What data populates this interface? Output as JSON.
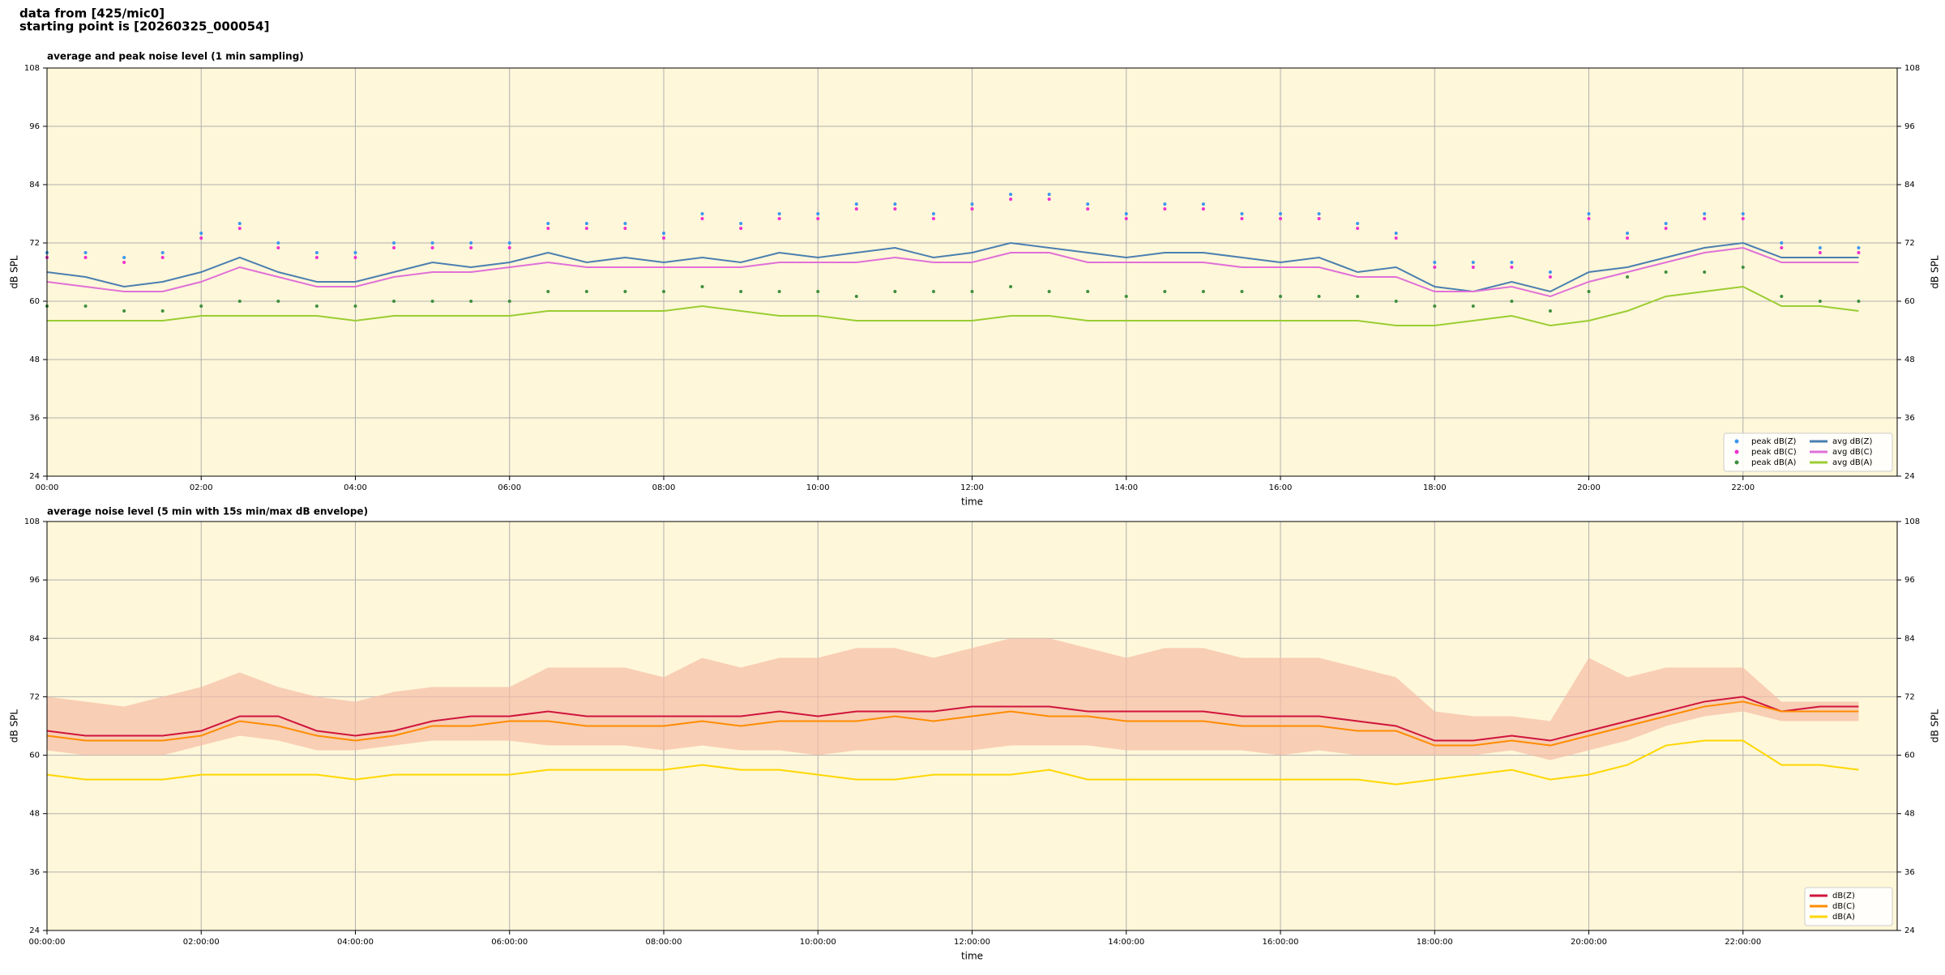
{
  "header": {
    "line1": "data from [425/mic0]",
    "line2": "starting point is [20260325_000054]"
  },
  "chart_data": [
    {
      "type": "line",
      "title": "average and peak noise level (1 min sampling)",
      "xlabel": "time",
      "ylabel": "dB SPL",
      "x": [
        "00:00",
        "00:30",
        "01:00",
        "01:30",
        "02:00",
        "02:30",
        "03:00",
        "03:30",
        "04:00",
        "04:30",
        "05:00",
        "05:30",
        "06:00",
        "06:30",
        "07:00",
        "07:30",
        "08:00",
        "08:30",
        "09:00",
        "09:30",
        "10:00",
        "10:30",
        "11:00",
        "11:30",
        "12:00",
        "12:30",
        "13:00",
        "13:30",
        "14:00",
        "14:30",
        "15:00",
        "15:30",
        "16:00",
        "16:30",
        "17:00",
        "17:30",
        "18:00",
        "18:30",
        "19:00",
        "19:30",
        "20:00",
        "20:30",
        "21:00",
        "21:30",
        "22:00",
        "22:30",
        "23:00",
        "23:30"
      ],
      "xlim": [
        "00:00",
        "24:00"
      ],
      "xticks": [
        "00:00",
        "02:00",
        "04:00",
        "06:00",
        "08:00",
        "10:00",
        "12:00",
        "14:00",
        "16:00",
        "18:00",
        "20:00",
        "22:00"
      ],
      "ylim": [
        24,
        108
      ],
      "yticks": [
        24,
        36,
        48,
        60,
        72,
        84,
        96,
        108
      ],
      "grid": true,
      "legend": "lower right",
      "legend_columns": 2,
      "background": "#fff7d9",
      "series": [
        {
          "name": "peak dB(Z)",
          "kind": "scatter",
          "color": "#3c96f0",
          "values": [
            70,
            70,
            69,
            70,
            74,
            76,
            72,
            70,
            70,
            72,
            72,
            72,
            72,
            76,
            76,
            76,
            74,
            78,
            76,
            78,
            78,
            80,
            80,
            78,
            80,
            82,
            82,
            80,
            78,
            80,
            80,
            78,
            78,
            78,
            76,
            74,
            68,
            68,
            68,
            66,
            78,
            74,
            76,
            78,
            78,
            72,
            71,
            71
          ]
        },
        {
          "name": "peak dB(C)",
          "kind": "scatter",
          "color": "#f030d0",
          "values": [
            69,
            69,
            68,
            69,
            73,
            75,
            71,
            69,
            69,
            71,
            71,
            71,
            71,
            75,
            75,
            75,
            73,
            77,
            75,
            77,
            77,
            79,
            79,
            77,
            79,
            81,
            81,
            79,
            77,
            79,
            79,
            77,
            77,
            77,
            75,
            73,
            67,
            67,
            67,
            65,
            77,
            73,
            75,
            77,
            77,
            71,
            70,
            70
          ]
        },
        {
          "name": "peak dB(A)",
          "kind": "scatter",
          "color": "#3f8f3f",
          "values": [
            59,
            59,
            58,
            58,
            59,
            60,
            60,
            59,
            59,
            60,
            60,
            60,
            60,
            62,
            62,
            62,
            62,
            63,
            62,
            62,
            62,
            61,
            62,
            62,
            62,
            63,
            62,
            62,
            61,
            62,
            62,
            62,
            61,
            61,
            61,
            60,
            59,
            59,
            60,
            58,
            62,
            65,
            66,
            66,
            67,
            61,
            60,
            60
          ]
        },
        {
          "name": "avg dB(Z)",
          "kind": "line",
          "color": "#4a7fb0",
          "values": [
            66,
            65,
            63,
            64,
            66,
            69,
            66,
            64,
            64,
            66,
            68,
            67,
            68,
            70,
            68,
            69,
            68,
            69,
            68,
            70,
            69,
            70,
            71,
            69,
            70,
            72,
            71,
            70,
            69,
            70,
            70,
            69,
            68,
            69,
            66,
            67,
            63,
            62,
            64,
            62,
            66,
            67,
            69,
            71,
            72,
            69,
            69,
            69
          ]
        },
        {
          "name": "avg dB(C)",
          "kind": "line",
          "color": "#e070d8",
          "values": [
            64,
            63,
            62,
            62,
            64,
            67,
            65,
            63,
            63,
            65,
            66,
            66,
            67,
            68,
            67,
            67,
            67,
            67,
            67,
            68,
            68,
            68,
            69,
            68,
            68,
            70,
            70,
            68,
            68,
            68,
            68,
            67,
            67,
            67,
            65,
            65,
            62,
            62,
            63,
            61,
            64,
            66,
            68,
            70,
            71,
            68,
            68,
            68
          ]
        },
        {
          "name": "avg dB(A)",
          "kind": "line",
          "color": "#9acd32",
          "values": [
            56,
            56,
            56,
            56,
            57,
            57,
            57,
            57,
            56,
            57,
            57,
            57,
            57,
            58,
            58,
            58,
            58,
            59,
            58,
            57,
            57,
            56,
            56,
            56,
            56,
            57,
            57,
            56,
            56,
            56,
            56,
            56,
            56,
            56,
            56,
            55,
            55,
            56,
            57,
            55,
            56,
            58,
            61,
            62,
            63,
            59,
            59,
            58
          ]
        }
      ]
    },
    {
      "type": "line",
      "title": "average noise level (5 min with 15s min/max dB envelope)",
      "xlabel": "time",
      "ylabel": "dB SPL",
      "x": [
        "00:00:00",
        "00:30:00",
        "01:00:00",
        "01:30:00",
        "02:00:00",
        "02:30:00",
        "03:00:00",
        "03:30:00",
        "04:00:00",
        "04:30:00",
        "05:00:00",
        "05:30:00",
        "06:00:00",
        "06:30:00",
        "07:00:00",
        "07:30:00",
        "08:00:00",
        "08:30:00",
        "09:00:00",
        "09:30:00",
        "10:00:00",
        "10:30:00",
        "11:00:00",
        "11:30:00",
        "12:00:00",
        "12:30:00",
        "13:00:00",
        "13:30:00",
        "14:00:00",
        "14:30:00",
        "15:00:00",
        "15:30:00",
        "16:00:00",
        "16:30:00",
        "17:00:00",
        "17:30:00",
        "18:00:00",
        "18:30:00",
        "19:00:00",
        "19:30:00",
        "20:00:00",
        "20:30:00",
        "21:00:00",
        "21:30:00",
        "22:00:00",
        "22:30:00",
        "23:00:00",
        "23:30:00"
      ],
      "xlim": [
        "00:00:00",
        "24:00:00"
      ],
      "xticks": [
        "00:00:00",
        "02:00:00",
        "04:00:00",
        "06:00:00",
        "08:00:00",
        "10:00:00",
        "12:00:00",
        "14:00:00",
        "16:00:00",
        "18:00:00",
        "20:00:00",
        "22:00:00"
      ],
      "ylim": [
        24,
        108
      ],
      "yticks": [
        24,
        36,
        48,
        60,
        72,
        84,
        96,
        108
      ],
      "grid": true,
      "legend": "lower right",
      "legend_columns": 1,
      "background": "#fff7d9",
      "envelope": {
        "color": "#f5bca5",
        "upper": [
          72,
          71,
          70,
          72,
          74,
          77,
          74,
          72,
          71,
          73,
          74,
          74,
          74,
          78,
          78,
          78,
          76,
          80,
          78,
          80,
          80,
          82,
          82,
          80,
          82,
          84,
          84,
          82,
          80,
          82,
          82,
          80,
          80,
          80,
          78,
          76,
          69,
          68,
          68,
          67,
          80,
          76,
          78,
          78,
          78,
          71,
          71,
          71
        ],
        "lower": [
          61,
          60,
          60,
          60,
          62,
          64,
          63,
          61,
          61,
          62,
          63,
          63,
          63,
          62,
          62,
          62,
          61,
          62,
          61,
          61,
          60,
          61,
          61,
          61,
          61,
          62,
          62,
          62,
          61,
          61,
          61,
          61,
          60,
          61,
          60,
          60,
          60,
          60,
          61,
          59,
          61,
          63,
          66,
          68,
          69,
          67,
          67,
          67
        ]
      },
      "series": [
        {
          "name": "dB(Z)",
          "kind": "line",
          "color": "#d0143c",
          "values": [
            65,
            64,
            64,
            64,
            65,
            68,
            68,
            65,
            64,
            65,
            67,
            68,
            68,
            69,
            68,
            68,
            68,
            68,
            68,
            69,
            68,
            69,
            69,
            69,
            70,
            70,
            70,
            69,
            69,
            69,
            69,
            68,
            68,
            68,
            67,
            66,
            63,
            63,
            64,
            63,
            65,
            67,
            69,
            71,
            72,
            69,
            70,
            70
          ]
        },
        {
          "name": "dB(C)",
          "kind": "line",
          "color": "#ff8c00",
          "values": [
            64,
            63,
            63,
            63,
            64,
            67,
            66,
            64,
            63,
            64,
            66,
            66,
            67,
            67,
            66,
            66,
            66,
            67,
            66,
            67,
            67,
            67,
            68,
            67,
            68,
            69,
            68,
            68,
            67,
            67,
            67,
            66,
            66,
            66,
            65,
            65,
            62,
            62,
            63,
            62,
            64,
            66,
            68,
            70,
            71,
            69,
            69,
            69
          ]
        },
        {
          "name": "dB(A)",
          "kind": "line",
          "color": "#ffd700",
          "values": [
            56,
            55,
            55,
            55,
            56,
            56,
            56,
            56,
            55,
            56,
            56,
            56,
            56,
            57,
            57,
            57,
            57,
            58,
            57,
            57,
            56,
            55,
            55,
            56,
            56,
            56,
            57,
            55,
            55,
            55,
            55,
            55,
            55,
            55,
            55,
            54,
            55,
            56,
            57,
            55,
            56,
            58,
            62,
            63,
            63,
            58,
            58,
            57
          ]
        }
      ]
    }
  ]
}
